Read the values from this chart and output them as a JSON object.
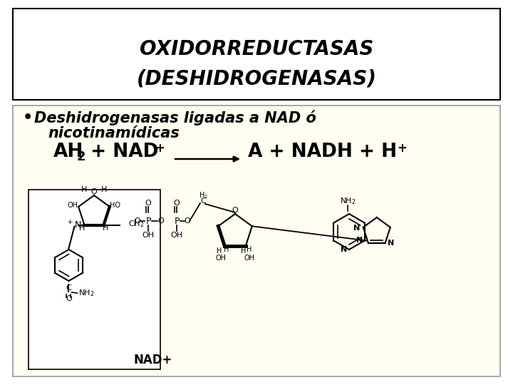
{
  "title_line1": "OXIDORREDUCTASAS",
  "title_line2": "(DESHIDROGENASAS)",
  "title_bg": "#ffffff",
  "title_border": "#000000",
  "content_bg": "#fffef0",
  "content_border": "#999999",
  "bullet_text_line1": "Deshidrogenasas ligadas a NAD ó",
  "bullet_text_line2": "nicotinamídicas",
  "nad_label": "NAD+",
  "outer_bg": "#ffffff",
  "title_fontsize": 20,
  "bullet_fontsize": 15,
  "eq_fontsize": 19,
  "nad_label_fontsize": 12
}
